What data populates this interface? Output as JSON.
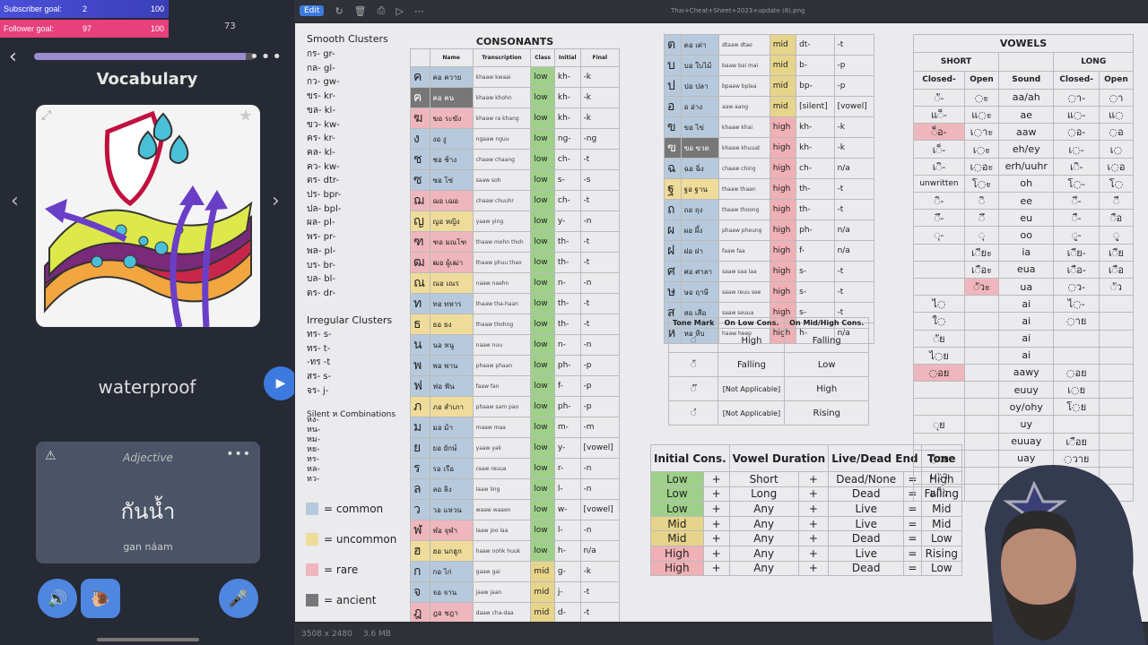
{
  "overlay": {
    "sub_label": "Subscriber goal:",
    "sub_cur": "2",
    "sub_max": "100",
    "fol_label": "Follower goal:",
    "fol_cur": "97",
    "fol_max": "100"
  },
  "phone": {
    "status": "73",
    "back": "‹",
    "progress": 0.96,
    "title": "Vocabulary",
    "word": "waterproof",
    "pos": "Adjective",
    "thai": "กันน้ำ",
    "romanization": "gan náam",
    "more": "•••",
    "expand": "⤢",
    "star": "★",
    "prev": "‹",
    "next": "›",
    "play": "▶",
    "speaker": "🔊",
    "snail": "🐌",
    "mic": "🎤",
    "warn": "⚠"
  },
  "viewer": {
    "edit": "Edit",
    "filename": "Thai+Cheat+Sheet+2023+update (8).png",
    "dims": "3508 x 2480",
    "size": "3.6 MB"
  },
  "sheet": {
    "smooth_title": "Smooth Clusters",
    "smooth": [
      "กร- gr-",
      "กล- gl-",
      "กว- gw-",
      "ขร- kr-",
      "ขล- kl-",
      "ขว- kw-",
      "คร- kr-",
      "คล- kl-",
      "คว- kw-",
      "ตร- dtr-",
      "ปร- bpr-",
      "ปล- bpl-",
      "ผล- pl-",
      "พร- pr-",
      "พล- pl-",
      "บร- br-",
      "บล- bl-",
      "ดร- dr-"
    ],
    "irregular_title": "Irregular Clusters",
    "irregular": [
      "ทร- s-",
      "ทร- t-",
      "-ทร -t",
      "สร- s-",
      "จร- j-"
    ],
    "silent_title": "Silent ห Combinations",
    "silent": [
      "หง-",
      "หน-",
      "หม-",
      "หย-",
      "หร-",
      "หล-",
      "หว-"
    ],
    "legend": [
      {
        "label": "= common",
        "color": "#b7c9dc"
      },
      {
        "label": "= uncommon",
        "color": "#efdc9a"
      },
      {
        "label": "= rare",
        "color": "#efb6bd"
      },
      {
        "label": "= ancient",
        "color": "#777777"
      }
    ],
    "consonants_title": "CONSONANTS",
    "cons_headers": [
      "Name",
      "Transcription",
      "Class",
      "Initial",
      "Final"
    ],
    "cons1": [
      [
        "ค",
        "คอ ควาย",
        "khaaw kwaai",
        "low",
        "kh-",
        "-k",
        "cm"
      ],
      [
        "ฅ",
        "คอ คน",
        "khaaw khohn",
        "low",
        "kh-",
        "-k",
        "an"
      ],
      [
        "ฆ",
        "ฆอ ระฆัง",
        "khaaw ra khang",
        "low",
        "kh-",
        "-k",
        "ra"
      ],
      [
        "ง",
        "งอ งู",
        "ngaaw nguu",
        "low",
        "ng-",
        "-ng",
        "cm"
      ],
      [
        "ช",
        "ชอ ช้าง",
        "chaaw chaang",
        "low",
        "ch-",
        "-t",
        "cm"
      ],
      [
        "ซ",
        "ซอ โซ่",
        "saaw soh",
        "low",
        "s-",
        "-s",
        "cm"
      ],
      [
        "ฌ",
        "ฌอ เฌอ",
        "chaaw chuuhr",
        "low",
        "ch-",
        "-t",
        "ra"
      ],
      [
        "ญ",
        "ญอ หญิง",
        "yaaw ying",
        "low",
        "y-",
        "-n",
        "un"
      ],
      [
        "ฑ",
        "ฑอ มณโฑ",
        "thaaw mohn thoh",
        "low",
        "th-",
        "-t",
        "ra"
      ],
      [
        "ฒ",
        "ฒอ ผู้เฒ่า",
        "thaaw phuu thao",
        "low",
        "th-",
        "-t",
        "ra"
      ],
      [
        "ณ",
        "ณอ เณร",
        "naaw naehn",
        "low",
        "n-",
        "-n",
        "un"
      ],
      [
        "ท",
        "ทอ ทหาร",
        "thaaw tha-haan",
        "low",
        "th-",
        "-t",
        "cm"
      ],
      [
        "ธ",
        "ธอ ธง",
        "thaaw thohng",
        "low",
        "th-",
        "-t",
        "un"
      ],
      [
        "น",
        "นอ หนู",
        "naaw nuu",
        "low",
        "n-",
        "-n",
        "cm"
      ],
      [
        "พ",
        "พอ พาน",
        "phaaw phaan",
        "low",
        "ph-",
        "-p",
        "cm"
      ],
      [
        "ฟ",
        "ฟอ ฟัน",
        "faaw fan",
        "low",
        "f-",
        "-p",
        "cm"
      ],
      [
        "ภ",
        "ภอ สำเภา",
        "phaaw sam pao",
        "low",
        "ph-",
        "-p",
        "un"
      ],
      [
        "ม",
        "มอ ม้า",
        "maaw maa",
        "low",
        "m-",
        "-m",
        "cm"
      ],
      [
        "ย",
        "ยอ ยักษ์",
        "yaaw yak",
        "low",
        "y-",
        "[vowel]",
        "cm"
      ],
      [
        "ร",
        "รอ เรือ",
        "raaw reuua",
        "low",
        "r-",
        "-n",
        "cm"
      ],
      [
        "ล",
        "ลอ ลิง",
        "laaw ling",
        "low",
        "l-",
        "-n",
        "cm"
      ],
      [
        "ว",
        "วอ แหวน",
        "waaw waaen",
        "low",
        "w-",
        "[vowel]",
        "cm"
      ],
      [
        "ฬ",
        "ฬอ จุฬา",
        "laaw joo laa",
        "low",
        "l-",
        "-n",
        "ra"
      ],
      [
        "ฮ",
        "ฮอ นกฮูก",
        "haaw nohk huuk",
        "low",
        "h-",
        "n/a",
        "un"
      ],
      [
        "ก",
        "กอ ไก่",
        "gaaw gai",
        "mid",
        "g-",
        "-k",
        "cm"
      ],
      [
        "จ",
        "จอ จาน",
        "jaaw jaan",
        "mid",
        "j-",
        "-t",
        "cm"
      ],
      [
        "ฎ",
        "ฎอ ชฎา",
        "daaw cha-daa",
        "mid",
        "d-",
        "-t",
        "ra"
      ],
      [
        "ฏ",
        "ฏอ ปฏัก",
        "dtaaw bpa dtak",
        "mid",
        "dt-",
        "-t",
        "ra"
      ],
      [
        "ด",
        "ดอ เด็ก",
        "daaw dek",
        "mid",
        "d-",
        "-t",
        "cm"
      ]
    ],
    "cons2": [
      [
        "ต",
        "ตอ เต่า",
        "dtaaw dtao",
        "mid",
        "dt-",
        "-t",
        "cm"
      ],
      [
        "บ",
        "บอ ใบไม้",
        "baaw bai mai",
        "mid",
        "b-",
        "-p",
        "cm"
      ],
      [
        "ป",
        "ปอ ปลา",
        "bpaaw bplaa",
        "mid",
        "bp-",
        "-p",
        "cm"
      ],
      [
        "อ",
        "อ อ่าง",
        "aaw aang",
        "mid",
        "[silent]",
        "[vowel]",
        "cm"
      ],
      [
        "ข",
        "ขอ ไข่",
        "khaaw khai",
        "high",
        "kh-",
        "-k",
        "cm"
      ],
      [
        "ฃ",
        "ฃอ ขวด",
        "khaaw khuuat",
        "high",
        "kh-",
        "-k",
        "an"
      ],
      [
        "ฉ",
        "ฉอ ฉิ่ง",
        "chaaw ching",
        "high",
        "ch-",
        "n/a",
        "cm"
      ],
      [
        "ฐ",
        "ฐอ ฐาน",
        "thaaw thaan",
        "high",
        "th-",
        "-t",
        "un"
      ],
      [
        "ถ",
        "ถอ ถุง",
        "thaaw thoong",
        "high",
        "th-",
        "-t",
        "cm"
      ],
      [
        "ผ",
        "ผอ ผึ้ง",
        "phaaw pheung",
        "high",
        "ph-",
        "n/a",
        "cm"
      ],
      [
        "ฝ",
        "ฝอ ฝา",
        "faaw faa",
        "high",
        "f-",
        "n/a",
        "cm"
      ],
      [
        "ศ",
        "ศอ ศาลา",
        "saaw saa laa",
        "high",
        "s-",
        "-t",
        "cm"
      ],
      [
        "ษ",
        "ษอ ฤาษี",
        "saaw reuu see",
        "high",
        "s-",
        "-t",
        "cm"
      ],
      [
        "ส",
        "สอ เสือ",
        "saaw seuua",
        "high",
        "s-",
        "-t",
        "cm"
      ],
      [
        "ห",
        "หอ หีบ",
        "haaw heep",
        "high",
        "h-",
        "n/a",
        "cm"
      ]
    ],
    "tone_headers": [
      "Tone Mark",
      "On Low Cons.",
      "On Mid/High Cons."
    ],
    "tones": [
      [
        "◌่",
        "High",
        "Falling"
      ],
      [
        "◌้",
        "Falling",
        "Low"
      ],
      [
        "◌๊",
        "[Not Applicable]",
        "High"
      ],
      [
        "◌๋",
        "[Not Applicable]",
        "Rising"
      ]
    ],
    "rule_headers": [
      "Initial Cons.",
      "Vowel Duration",
      "Live/Dead End",
      "Tone"
    ],
    "rules": [
      [
        "Low",
        "Short",
        "Dead/None",
        "High",
        "low"
      ],
      [
        "Low",
        "Long",
        "Dead",
        "Falling",
        "low"
      ],
      [
        "Low",
        "Any",
        "Live",
        "Mid",
        "low"
      ],
      [
        "Mid",
        "Any",
        "Live",
        "Mid",
        "mid"
      ],
      [
        "Mid",
        "Any",
        "Dead",
        "Low",
        "mid"
      ],
      [
        "High",
        "Any",
        "Live",
        "Rising",
        "high"
      ],
      [
        "High",
        "Any",
        "Dead",
        "Low",
        "high"
      ]
    ],
    "plus": "+",
    "eq": "=",
    "vowels_title": "VOWELS",
    "vowel_groups": [
      "SHORT",
      "LONG"
    ],
    "vowel_sub": [
      "Closed-",
      "Open",
      "Sound",
      "Closed-",
      "Open"
    ],
    "vowels": [
      [
        "◌ั-",
        "◌ะ",
        "aa/ah",
        "◌า-",
        "◌า",
        ""
      ],
      [
        "แ◌็-",
        "แ◌ะ",
        "ae",
        "แ◌-",
        "แ◌",
        ""
      ],
      [
        "◌็อ-",
        "เ◌าะ",
        "aaw",
        "◌อ-",
        "◌อ",
        "ra"
      ],
      [
        "เ◌็-",
        "เ◌ะ",
        "eh/ey",
        "เ◌-",
        "เ◌",
        ""
      ],
      [
        "เ◌ิ-",
        "เ◌อะ",
        "erh/uuhr",
        "เ◌ิ-",
        "เ◌อ",
        ""
      ],
      [
        "unwritten",
        "โ◌ะ",
        "oh",
        "โ◌-",
        "โ◌",
        ""
      ],
      [
        "◌ิ-",
        "◌ิ",
        "ee",
        "◌ี-",
        "◌ี",
        ""
      ],
      [
        "◌ึ-",
        "◌ึ",
        "eu",
        "◌ื-",
        "◌ือ",
        ""
      ],
      [
        "◌ุ-",
        "◌ุ",
        "oo",
        "◌ู-",
        "◌ู",
        ""
      ],
      [
        "",
        "เ◌ียะ",
        "ia",
        "เ◌ีย-",
        "เ◌ีย",
        ""
      ],
      [
        "",
        "เ◌ือะ",
        "eua",
        "เ◌ือ-",
        "เ◌ือ",
        ""
      ],
      [
        "",
        "◌ัวะ",
        "ua",
        "◌ว-",
        "◌ัว",
        "ra2"
      ],
      [
        "ไ◌",
        "",
        "ai",
        "ไ◌-",
        "",
        ""
      ],
      [
        "ใ◌",
        "",
        "ai",
        "◌าย",
        "",
        ""
      ],
      [
        "◌ัย",
        "",
        "ai",
        "",
        "",
        ""
      ],
      [
        "ไ◌ย",
        "",
        "ai",
        "",
        "",
        ""
      ],
      [
        "◌อย",
        "",
        "aawy",
        "◌อย",
        "",
        "ra"
      ],
      [
        "",
        "",
        "euuy",
        "เ◌ย",
        "",
        ""
      ],
      [
        "",
        "",
        "oy/ohy",
        "โ◌ย",
        "",
        ""
      ],
      [
        "◌ุย",
        "",
        "uy",
        "",
        "",
        ""
      ],
      [
        "",
        "",
        "euuay",
        "เ◌ือย",
        "",
        ""
      ],
      [
        "◌วย",
        "",
        "uay",
        "◌วาย",
        "",
        ""
      ],
      [
        "เ◌า",
        "",
        "ao",
        "◌าว",
        "",
        ""
      ],
      [
        "แ◌็ว",
        "",
        "aew",
        "แ◌ว",
        "",
        ""
      ]
    ]
  }
}
